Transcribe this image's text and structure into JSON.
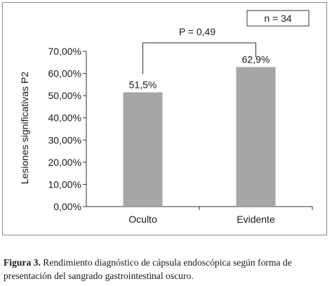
{
  "chart_data": {
    "type": "bar",
    "categories": [
      "Oculto",
      "Evidente"
    ],
    "values": [
      51.5,
      62.9
    ],
    "data_labels": [
      "51,5%",
      "62,9%"
    ],
    "ylabel": "Lesiones significativas P2",
    "xlabel": "",
    "ylim": [
      0,
      70
    ],
    "yticks": [
      0,
      10,
      20,
      30,
      40,
      50,
      60,
      70
    ],
    "ytick_labels": [
      "0,00%",
      "10,00%",
      "20,00%",
      "30,00%",
      "40,00%",
      "50,00%",
      "60,00%",
      "70,00%"
    ],
    "legend_box": "n = 34",
    "significance_label": "P = 0,49",
    "bar_color": "#a6a6a6",
    "grid": false
  },
  "caption": {
    "label": "Figura 3.",
    "text": " Rendimiento diagnóstico de cápsula endoscópica según forma de presentación del sangrado gastrointestinal oscuro."
  }
}
